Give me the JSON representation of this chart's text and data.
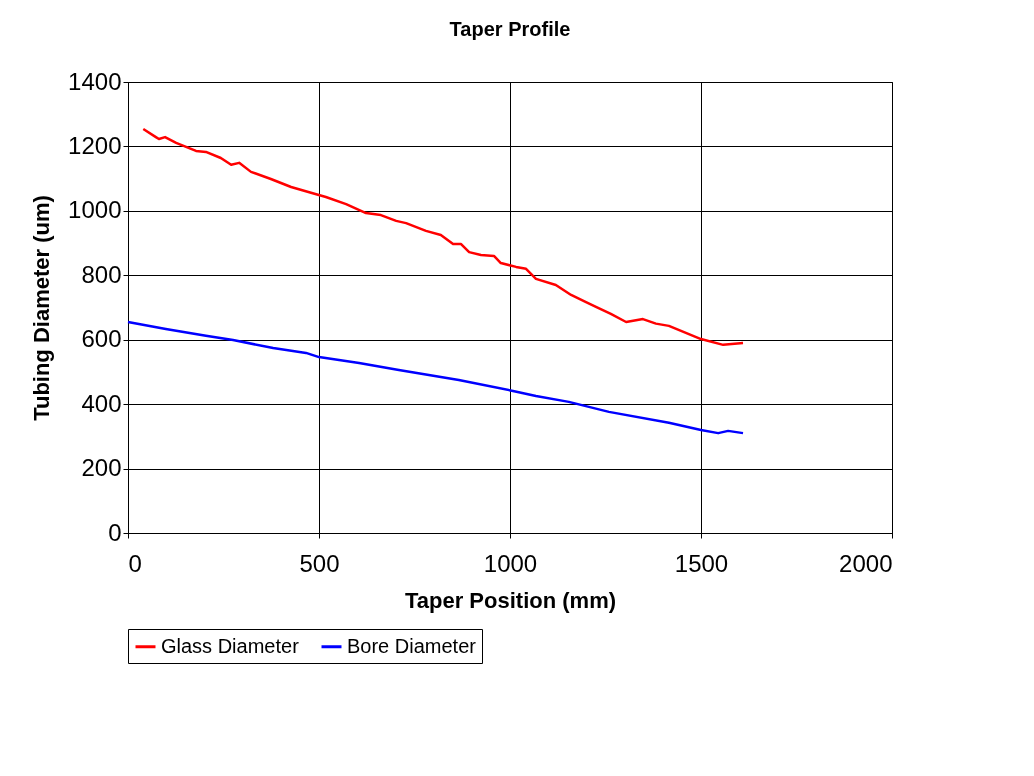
{
  "chart_data": {
    "type": "line",
    "title": "Taper Profile",
    "xlabel": "Taper Position (mm)",
    "ylabel": "Tubing Diameter (um)",
    "xlim": [
      0,
      2000
    ],
    "xticks": [
      0,
      500,
      1000,
      1500,
      2000
    ],
    "ylim": [
      0,
      1400
    ],
    "yticks": [
      0,
      200,
      400,
      600,
      800,
      1000,
      1200,
      1400
    ],
    "grid": true,
    "legend": "bottom",
    "line_style": "solid",
    "marker": "none",
    "series": [
      {
        "name": "Glass Diameter",
        "color": "#ff0000",
        "x": [
          40,
          73,
          81,
          97,
          126,
          178,
          204,
          243,
          270,
          291,
          322,
          374,
          427,
          479,
          518,
          571,
          623,
          662,
          702,
          728,
          780,
          819,
          851,
          872,
          893,
          924,
          958,
          976,
          1016,
          1042,
          1068,
          1120,
          1160,
          1199,
          1225,
          1264,
          1304,
          1348,
          1382,
          1416,
          1500,
          1558,
          1610
        ],
        "values": [
          1254,
          1229,
          1223,
          1229,
          1211,
          1186,
          1183,
          1164,
          1143,
          1149,
          1121,
          1099,
          1074,
          1056,
          1043,
          1021,
          993,
          987,
          969,
          962,
          938,
          925,
          897,
          897,
          872,
          863,
          860,
          838,
          826,
          820,
          789,
          770,
          739,
          717,
          702,
          680,
          655,
          664,
          650,
          643,
          602,
          584,
          590
        ]
      },
      {
        "name": "Bore Diameter",
        "color": "#0000ff",
        "x": [
          0,
          99,
          204,
          275,
          380,
          466,
          500,
          605,
          709,
          866,
          1008,
          1068,
          1154,
          1259,
          1416,
          1500,
          1545,
          1571,
          1610
        ],
        "values": [
          655,
          633,
          612,
          599,
          574,
          559,
          546,
          528,
          506,
          475,
          441,
          425,
          407,
          376,
          342,
          320,
          310,
          317,
          310
        ]
      }
    ]
  }
}
